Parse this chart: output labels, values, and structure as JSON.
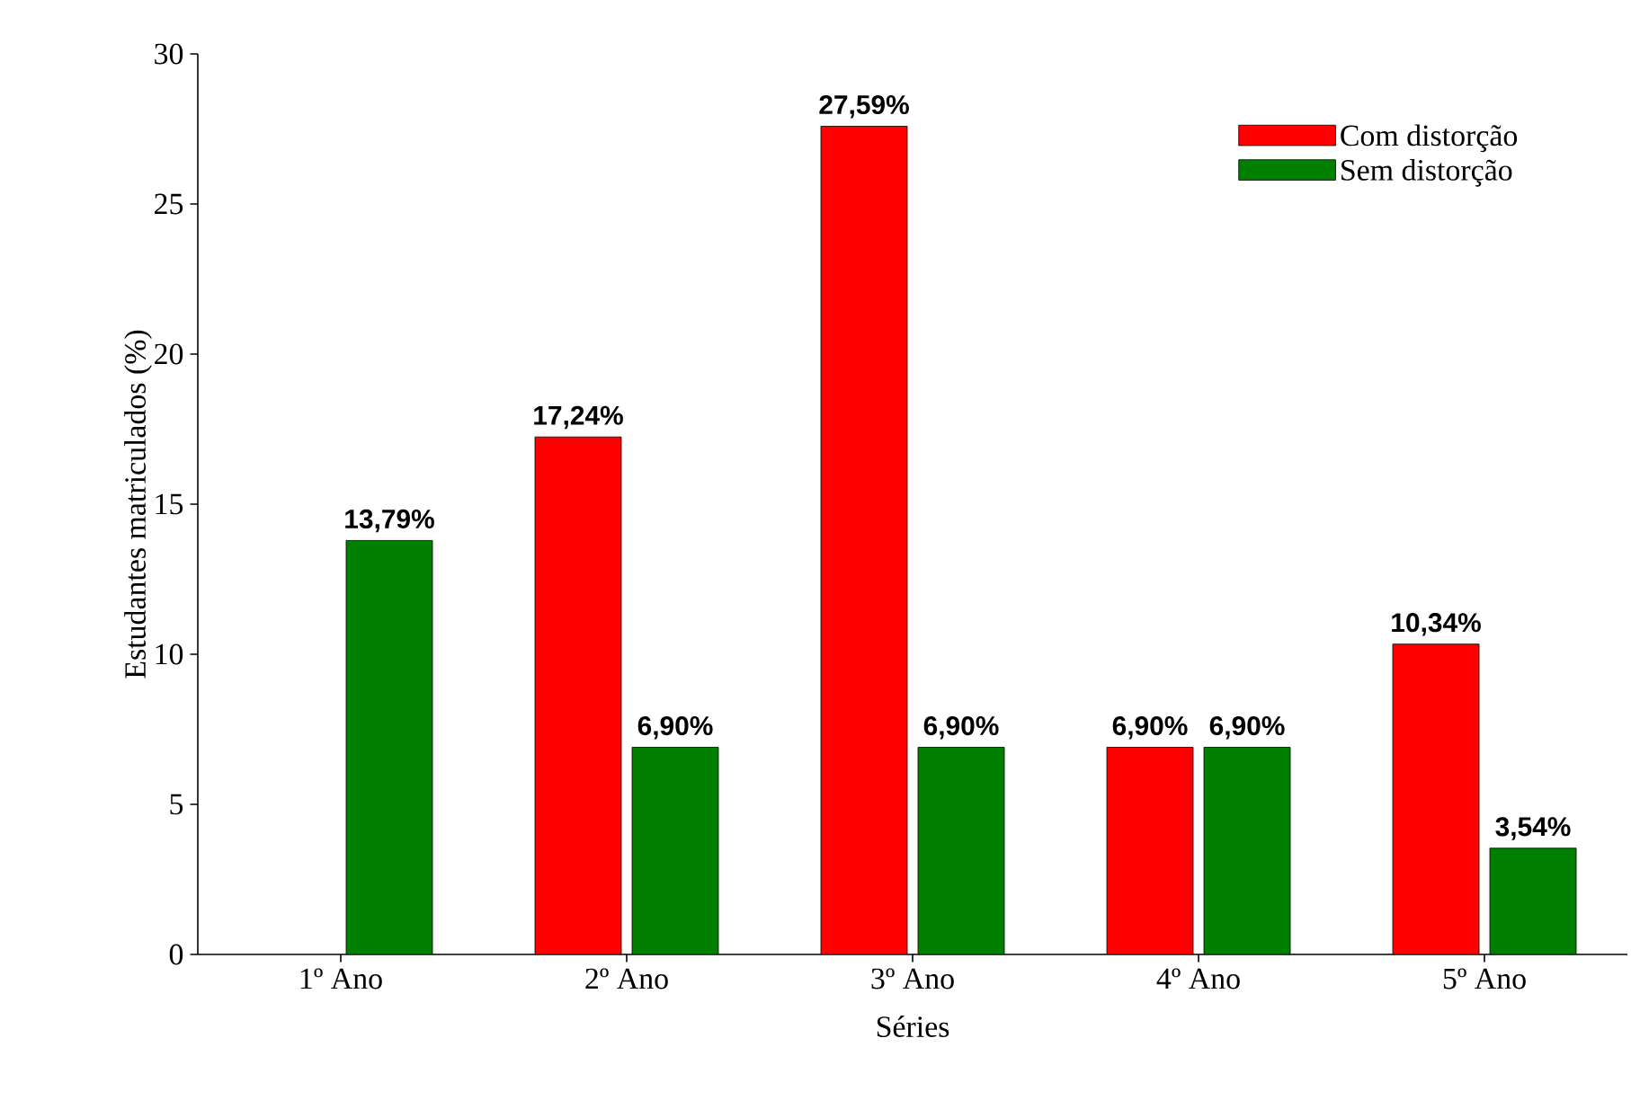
{
  "chart_data": {
    "type": "bar",
    "xlabel": "Séries",
    "ylabel": "Estudantes matriculados (%)",
    "categories": [
      "1º Ano",
      "2º Ano",
      "3º Ano",
      "4º Ano",
      "5º Ano"
    ],
    "series": [
      {
        "name": "Com distorção",
        "color": "#ff0000",
        "values": [
          null,
          17.24,
          27.59,
          6.9,
          10.34
        ],
        "value_labels": [
          null,
          "17,24%",
          "27,59%",
          "6,90%",
          "10,34%"
        ]
      },
      {
        "name": "Sem distorção",
        "color": "#007f00",
        "values": [
          13.79,
          6.9,
          6.9,
          6.9,
          3.54
        ],
        "value_labels": [
          "13,79%",
          "6,90%",
          "6,90%",
          "6,90%",
          "3,54%"
        ]
      }
    ],
    "ylim": [
      0,
      30
    ],
    "yticks": [
      0,
      5,
      10,
      15,
      20,
      25,
      30
    ],
    "legend": "top right"
  }
}
